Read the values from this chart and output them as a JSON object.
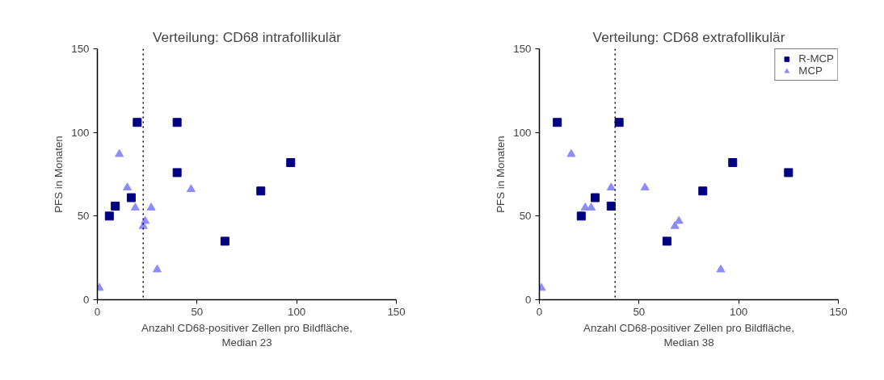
{
  "chart_data": [
    {
      "type": "scatter",
      "title": "Verteilung: CD68 intrafollikulär",
      "xlabel": "Anzahl CD68-positiver Zellen pro Bildfläche,\nMedian 23",
      "ylabel": "PFS in Monaten",
      "xlim": [
        0,
        150
      ],
      "ylim": [
        0,
        150
      ],
      "xticks": [
        0,
        50,
        100,
        150
      ],
      "yticks": [
        0,
        50,
        100,
        150
      ],
      "grid": false,
      "legend": false,
      "ref_lines": [
        {
          "axis": "x",
          "value": 23,
          "line_style": "dotted",
          "color": "#000000"
        }
      ],
      "series": [
        {
          "color": "#000080",
          "marker": "square",
          "x": [
            20,
            40,
            40,
            97,
            82,
            64,
            17,
            9,
            6
          ],
          "values": [
            106,
            106,
            76,
            82,
            65,
            35,
            61,
            56,
            50
          ]
        },
        {
          "color": "#8c8cff",
          "marker": "triangle",
          "x": [
            1,
            11,
            15,
            19,
            27,
            24,
            23,
            30,
            47
          ],
          "values": [
            7,
            87,
            67,
            55,
            55,
            47,
            44,
            18,
            66
          ]
        }
      ]
    },
    {
      "type": "scatter",
      "title": "Verteilung: CD68 extrafollikulär",
      "xlabel": "Anzahl CD68-positiver Zellen pro Bildfläche,\nMedian 38",
      "ylabel": "PFS in Monaten",
      "xlim": [
        0,
        150
      ],
      "ylim": [
        0,
        150
      ],
      "xticks": [
        0,
        50,
        100,
        150
      ],
      "yticks": [
        0,
        50,
        100,
        150
      ],
      "grid": false,
      "legend": "top right",
      "ref_lines": [
        {
          "axis": "x",
          "value": 38,
          "line_style": "dotted",
          "color": "#000000"
        }
      ],
      "series": [
        {
          "name": "R-MCP",
          "color": "#000080",
          "marker": "square",
          "x": [
            9,
            40,
            97,
            82,
            64,
            28,
            21,
            36,
            125
          ],
          "values": [
            106,
            106,
            82,
            65,
            35,
            61,
            50,
            56,
            76
          ]
        },
        {
          "name": "MCP",
          "color": "#8c8cff",
          "marker": "triangle",
          "x": [
            1,
            16,
            36,
            23,
            26,
            53,
            70,
            68,
            91
          ],
          "values": [
            7,
            87,
            67,
            55,
            55,
            67,
            47,
            44,
            18
          ]
        }
      ]
    }
  ]
}
